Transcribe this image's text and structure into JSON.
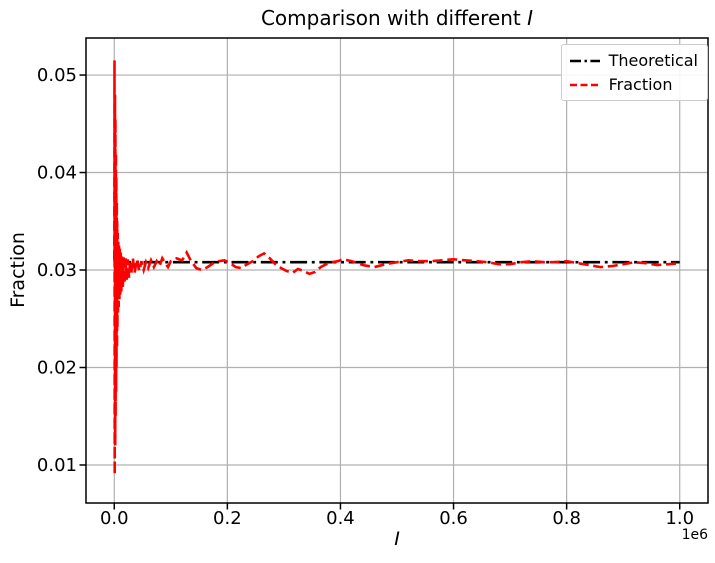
{
  "chart_data": {
    "type": "line",
    "title": "Comparison with different I",
    "title_prefix": "Comparison with different ",
    "title_var": "I",
    "xlabel": "I",
    "ylabel": "Fraction",
    "x_axis_multiplier": "1e6",
    "xlim": [
      -50000,
      1050000
    ],
    "ylim": [
      0.0061,
      0.0538
    ],
    "grid": true,
    "grid_color": "#b0b0b0",
    "background": "#ffffff",
    "xticks": {
      "values": [
        0,
        200000,
        400000,
        600000,
        800000,
        1000000
      ],
      "labels": [
        "0.0",
        "0.2",
        "0.4",
        "0.6",
        "0.8",
        "1.0"
      ]
    },
    "yticks": {
      "values": [
        0.01,
        0.02,
        0.03,
        0.04,
        0.05
      ],
      "labels": [
        "0.01",
        "0.02",
        "0.03",
        "0.04",
        "0.05"
      ]
    },
    "theoretical_value": 0.0308,
    "legend": {
      "position": "upper right",
      "entries": [
        {
          "label": "Theoretical",
          "color": "#000000",
          "linestyle": "dashdot"
        },
        {
          "label": "Fraction",
          "color": "#ff0000",
          "linestyle": "dashed"
        }
      ]
    },
    "series": [
      {
        "name": "Theoretical",
        "color": "#000000",
        "linestyle": "dashdot",
        "points": [
          [
            0,
            0.0308
          ],
          [
            1000000,
            0.0308
          ]
        ]
      },
      {
        "name": "Fraction",
        "color": "#ff0000",
        "linestyle": "dashed",
        "points": [
          [
            0,
            0.031
          ],
          [
            400,
            0.0515
          ],
          [
            800,
            0.009
          ],
          [
            1200,
            0.048
          ],
          [
            1600,
            0.012
          ],
          [
            2000,
            0.0455
          ],
          [
            2400,
            0.015
          ],
          [
            2800,
            0.042
          ],
          [
            3200,
            0.0175
          ],
          [
            3600,
            0.0395
          ],
          [
            4000,
            0.02
          ],
          [
            4400,
            0.037
          ],
          [
            4800,
            0.022
          ],
          [
            5200,
            0.035
          ],
          [
            5600,
            0.024
          ],
          [
            6000,
            0.0338
          ],
          [
            6600,
            0.0255
          ],
          [
            7200,
            0.033
          ],
          [
            7800,
            0.0262
          ],
          [
            8400,
            0.0325
          ],
          [
            9000,
            0.027
          ],
          [
            9800,
            0.0322
          ],
          [
            10600,
            0.0274
          ],
          [
            11500,
            0.0318
          ],
          [
            12500,
            0.0278
          ],
          [
            13500,
            0.0315
          ],
          [
            15000,
            0.0282
          ],
          [
            16500,
            0.0313
          ],
          [
            18000,
            0.0286
          ],
          [
            20000,
            0.0312
          ],
          [
            22000,
            0.029
          ],
          [
            24000,
            0.0311
          ],
          [
            26000,
            0.0292
          ],
          [
            28000,
            0.031
          ],
          [
            30000,
            0.0295
          ],
          [
            33000,
            0.0312
          ],
          [
            36000,
            0.0297
          ],
          [
            40000,
            0.0311
          ],
          [
            44000,
            0.0299
          ],
          [
            48000,
            0.0309
          ],
          [
            52000,
            0.03
          ],
          [
            56000,
            0.0308
          ],
          [
            60000,
            0.0302
          ],
          [
            65000,
            0.031
          ],
          [
            70000,
            0.0303
          ],
          [
            75000,
            0.0309
          ],
          [
            80000,
            0.0304
          ],
          [
            85000,
            0.0312
          ],
          [
            90000,
            0.0307
          ],
          [
            95000,
            0.0303
          ],
          [
            100000,
            0.0309
          ],
          [
            110000,
            0.0312
          ],
          [
            120000,
            0.031
          ],
          [
            128000,
            0.0318
          ],
          [
            135000,
            0.031
          ],
          [
            145000,
            0.0302
          ],
          [
            155000,
            0.03
          ],
          [
            165000,
            0.0303
          ],
          [
            175000,
            0.0307
          ],
          [
            185000,
            0.0309
          ],
          [
            195000,
            0.031
          ],
          [
            205000,
            0.0307
          ],
          [
            215000,
            0.0303
          ],
          [
            225000,
            0.0302
          ],
          [
            235000,
            0.0306
          ],
          [
            245000,
            0.0309
          ],
          [
            255000,
            0.0314
          ],
          [
            265000,
            0.0317
          ],
          [
            275000,
            0.0312
          ],
          [
            285000,
            0.0306
          ],
          [
            295000,
            0.0302
          ],
          [
            305000,
            0.0299
          ],
          [
            315000,
            0.0297
          ],
          [
            325000,
            0.0301
          ],
          [
            335000,
            0.0299
          ],
          [
            345000,
            0.0296
          ],
          [
            355000,
            0.0298
          ],
          [
            365000,
            0.0303
          ],
          [
            375000,
            0.0306
          ],
          [
            385000,
            0.0308
          ],
          [
            395000,
            0.0309
          ],
          [
            405000,
            0.0311
          ],
          [
            420000,
            0.0309
          ],
          [
            440000,
            0.0305
          ],
          [
            460000,
            0.0303
          ],
          [
            480000,
            0.0306
          ],
          [
            500000,
            0.0308
          ],
          [
            520000,
            0.031
          ],
          [
            540000,
            0.0309
          ],
          [
            560000,
            0.0309
          ],
          [
            580000,
            0.031
          ],
          [
            600000,
            0.0311
          ],
          [
            620000,
            0.031
          ],
          [
            640000,
            0.0309
          ],
          [
            660000,
            0.0308
          ],
          [
            680000,
            0.0306
          ],
          [
            700000,
            0.0306
          ],
          [
            720000,
            0.0308
          ],
          [
            740000,
            0.0309
          ],
          [
            760000,
            0.0308
          ],
          [
            780000,
            0.0308
          ],
          [
            800000,
            0.0309
          ],
          [
            820000,
            0.0307
          ],
          [
            840000,
            0.0305
          ],
          [
            860000,
            0.0303
          ],
          [
            880000,
            0.0304
          ],
          [
            900000,
            0.0306
          ],
          [
            920000,
            0.0308
          ],
          [
            940000,
            0.0307
          ],
          [
            960000,
            0.0305
          ],
          [
            980000,
            0.0306
          ],
          [
            1000000,
            0.0307
          ]
        ]
      }
    ]
  }
}
